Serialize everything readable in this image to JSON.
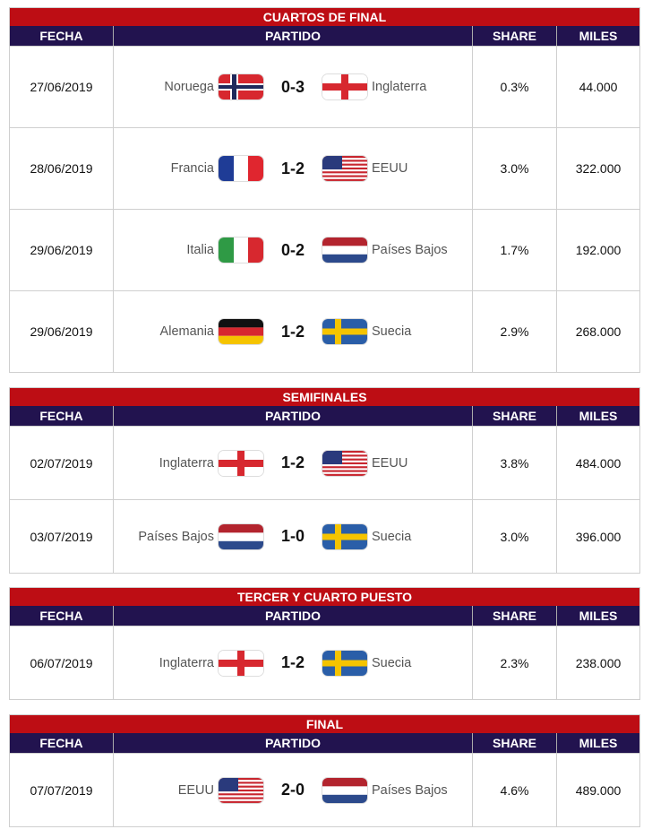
{
  "headers": {
    "fecha": "FECHA",
    "partido": "PARTIDO",
    "share": "SHARE",
    "miles": "MILES"
  },
  "colors": {
    "title_bg": "#bd0d14",
    "header_bg": "#22134f"
  },
  "sections": [
    {
      "title": "CUARTOS DE FINAL",
      "rows": [
        {
          "fecha": "27/06/2019",
          "team1": "Noruega",
          "flag1": "norway",
          "score": "0-3",
          "team2": "Inglaterra",
          "flag2": "england",
          "share": "0.3%",
          "miles": "44.000"
        },
        {
          "fecha": "28/06/2019",
          "team1": "Francia",
          "flag1": "france",
          "score": "1-2",
          "team2": "EEUU",
          "flag2": "usa",
          "share": "3.0%",
          "miles": "322.000"
        },
        {
          "fecha": "29/06/2019",
          "team1": "Italia",
          "flag1": "italy",
          "score": "0-2",
          "team2": "Países Bajos",
          "flag2": "netherlands",
          "share": "1.7%",
          "miles": "192.000"
        },
        {
          "fecha": "29/06/2019",
          "team1": "Alemania",
          "flag1": "germany",
          "score": "1-2",
          "team2": "Suecia",
          "flag2": "sweden",
          "share": "2.9%",
          "miles": "268.000"
        }
      ]
    },
    {
      "title": "SEMIFINALES",
      "rows": [
        {
          "fecha": "02/07/2019",
          "team1": "Inglaterra",
          "flag1": "england",
          "score": "1-2",
          "team2": "EEUU",
          "flag2": "usa",
          "share": "3.8%",
          "miles": "484.000"
        },
        {
          "fecha": "03/07/2019",
          "team1": "Países Bajos",
          "flag1": "netherlands",
          "score": "1-0",
          "team2": "Suecia",
          "flag2": "sweden",
          "share": "3.0%",
          "miles": "396.000"
        }
      ]
    },
    {
      "title": "TERCER Y CUARTO PUESTO",
      "rows": [
        {
          "fecha": "06/07/2019",
          "team1": "Inglaterra",
          "flag1": "england",
          "score": "1-2",
          "team2": "Suecia",
          "flag2": "sweden",
          "share": "2.3%",
          "miles": "238.000"
        }
      ]
    },
    {
      "title": "FINAL",
      "rows": [
        {
          "fecha": "07/07/2019",
          "team1": "EEUU",
          "flag1": "usa",
          "score": "2-0",
          "team2": "Países Bajos",
          "flag2": "netherlands",
          "share": "4.6%",
          "miles": "489.000"
        }
      ]
    }
  ]
}
